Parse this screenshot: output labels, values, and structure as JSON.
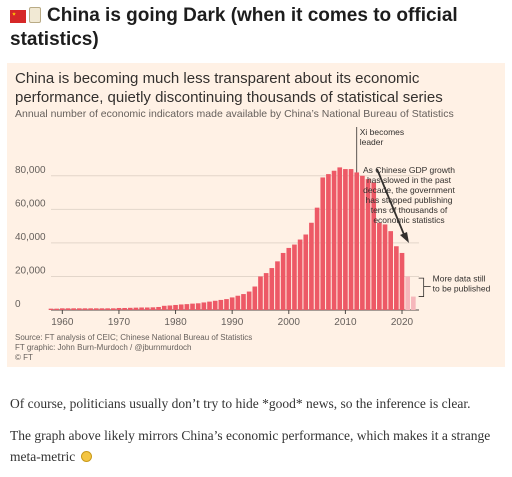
{
  "post": {
    "title": "China is going Dark (when it comes to official statistics)",
    "flag_icon": "china-flag-icon",
    "scroll_icon": "scroll-icon"
  },
  "chart_data": {
    "type": "bar",
    "title": "China is becoming much less transparent about its economic performance, quietly discontinuing thousands of statistical series",
    "subtitle": "Annual number of economic indicators made available by China’s National Bureau of Statistics",
    "xlabel": "",
    "ylabel": "",
    "xlim": [
      1958,
      2023
    ],
    "ylim": [
      0,
      90000
    ],
    "x_ticks": [
      "1960",
      "1970",
      "1980",
      "1990",
      "2000",
      "2010",
      "2020"
    ],
    "y_ticks": [
      "0",
      "20,000",
      "40,000",
      "60,000",
      "80,000"
    ],
    "grid": true,
    "bar_color": "#ed5966",
    "faded_bar_color": "#f6b7bb",
    "years": [
      1958,
      1959,
      1960,
      1961,
      1962,
      1963,
      1964,
      1965,
      1966,
      1967,
      1968,
      1969,
      1970,
      1971,
      1972,
      1973,
      1974,
      1975,
      1976,
      1977,
      1978,
      1979,
      1980,
      1981,
      1982,
      1983,
      1984,
      1985,
      1986,
      1987,
      1988,
      1989,
      1990,
      1991,
      1992,
      1993,
      1994,
      1995,
      1996,
      1997,
      1998,
      1999,
      2000,
      2001,
      2002,
      2003,
      2004,
      2005,
      2006,
      2007,
      2008,
      2009,
      2010,
      2011,
      2012,
      2013,
      2014,
      2015,
      2016,
      2017,
      2018,
      2019,
      2020,
      2021,
      2022
    ],
    "values": [
      800,
      800,
      1000,
      1000,
      1000,
      1000,
      1000,
      1000,
      1000,
      1000,
      1000,
      1000,
      1200,
      1200,
      1300,
      1400,
      1500,
      1500,
      1600,
      1800,
      2500,
      2700,
      3000,
      3300,
      3500,
      3800,
      4000,
      4500,
      5000,
      5500,
      6000,
      6500,
      7500,
      8500,
      9500,
      11000,
      14000,
      20000,
      22000,
      25000,
      29000,
      34000,
      37000,
      39000,
      42000,
      45000,
      52000,
      61000,
      79000,
      81000,
      83000,
      85000,
      84000,
      84000,
      82000,
      80000,
      78000,
      76000,
      52000,
      51000,
      47000,
      38000,
      34000,
      20000,
      8000
    ],
    "faded_from_year": 2021,
    "annotations": [
      {
        "text": "Xi becomes leader",
        "year": 2012
      },
      {
        "text": "As Chinese GDP growth has slowed in the past decade, the government has stopped publishing tens of thousands of economic statistics"
      },
      {
        "text": "More data still to be published",
        "years": [
          2021,
          2022
        ]
      }
    ]
  },
  "annotations_text": {
    "xi": [
      "Xi becomes",
      "leader"
    ],
    "gdp": [
      "As Chinese GDP growth",
      "has slowed in the past",
      "decade, the government",
      "has stopped publishing",
      "tens of thousands of",
      "economic statistics"
    ],
    "more": [
      "More data still",
      "to be published"
    ]
  },
  "source": {
    "line1": "Source: FT analysis of CEIC; Chinese National Bureau of Statistics",
    "line2": "FT graphic: John Burn-Murdoch / @jburnmurdoch",
    "line3": "© FT"
  },
  "body": {
    "para1": "Of course, politicians usually don’t try to hide *good* news, so the inference is clear.",
    "para2": "The graph above likely mirrors China’s economic performance, which makes it a strange meta-metric",
    "thinking_icon": "thinking-face-icon"
  }
}
